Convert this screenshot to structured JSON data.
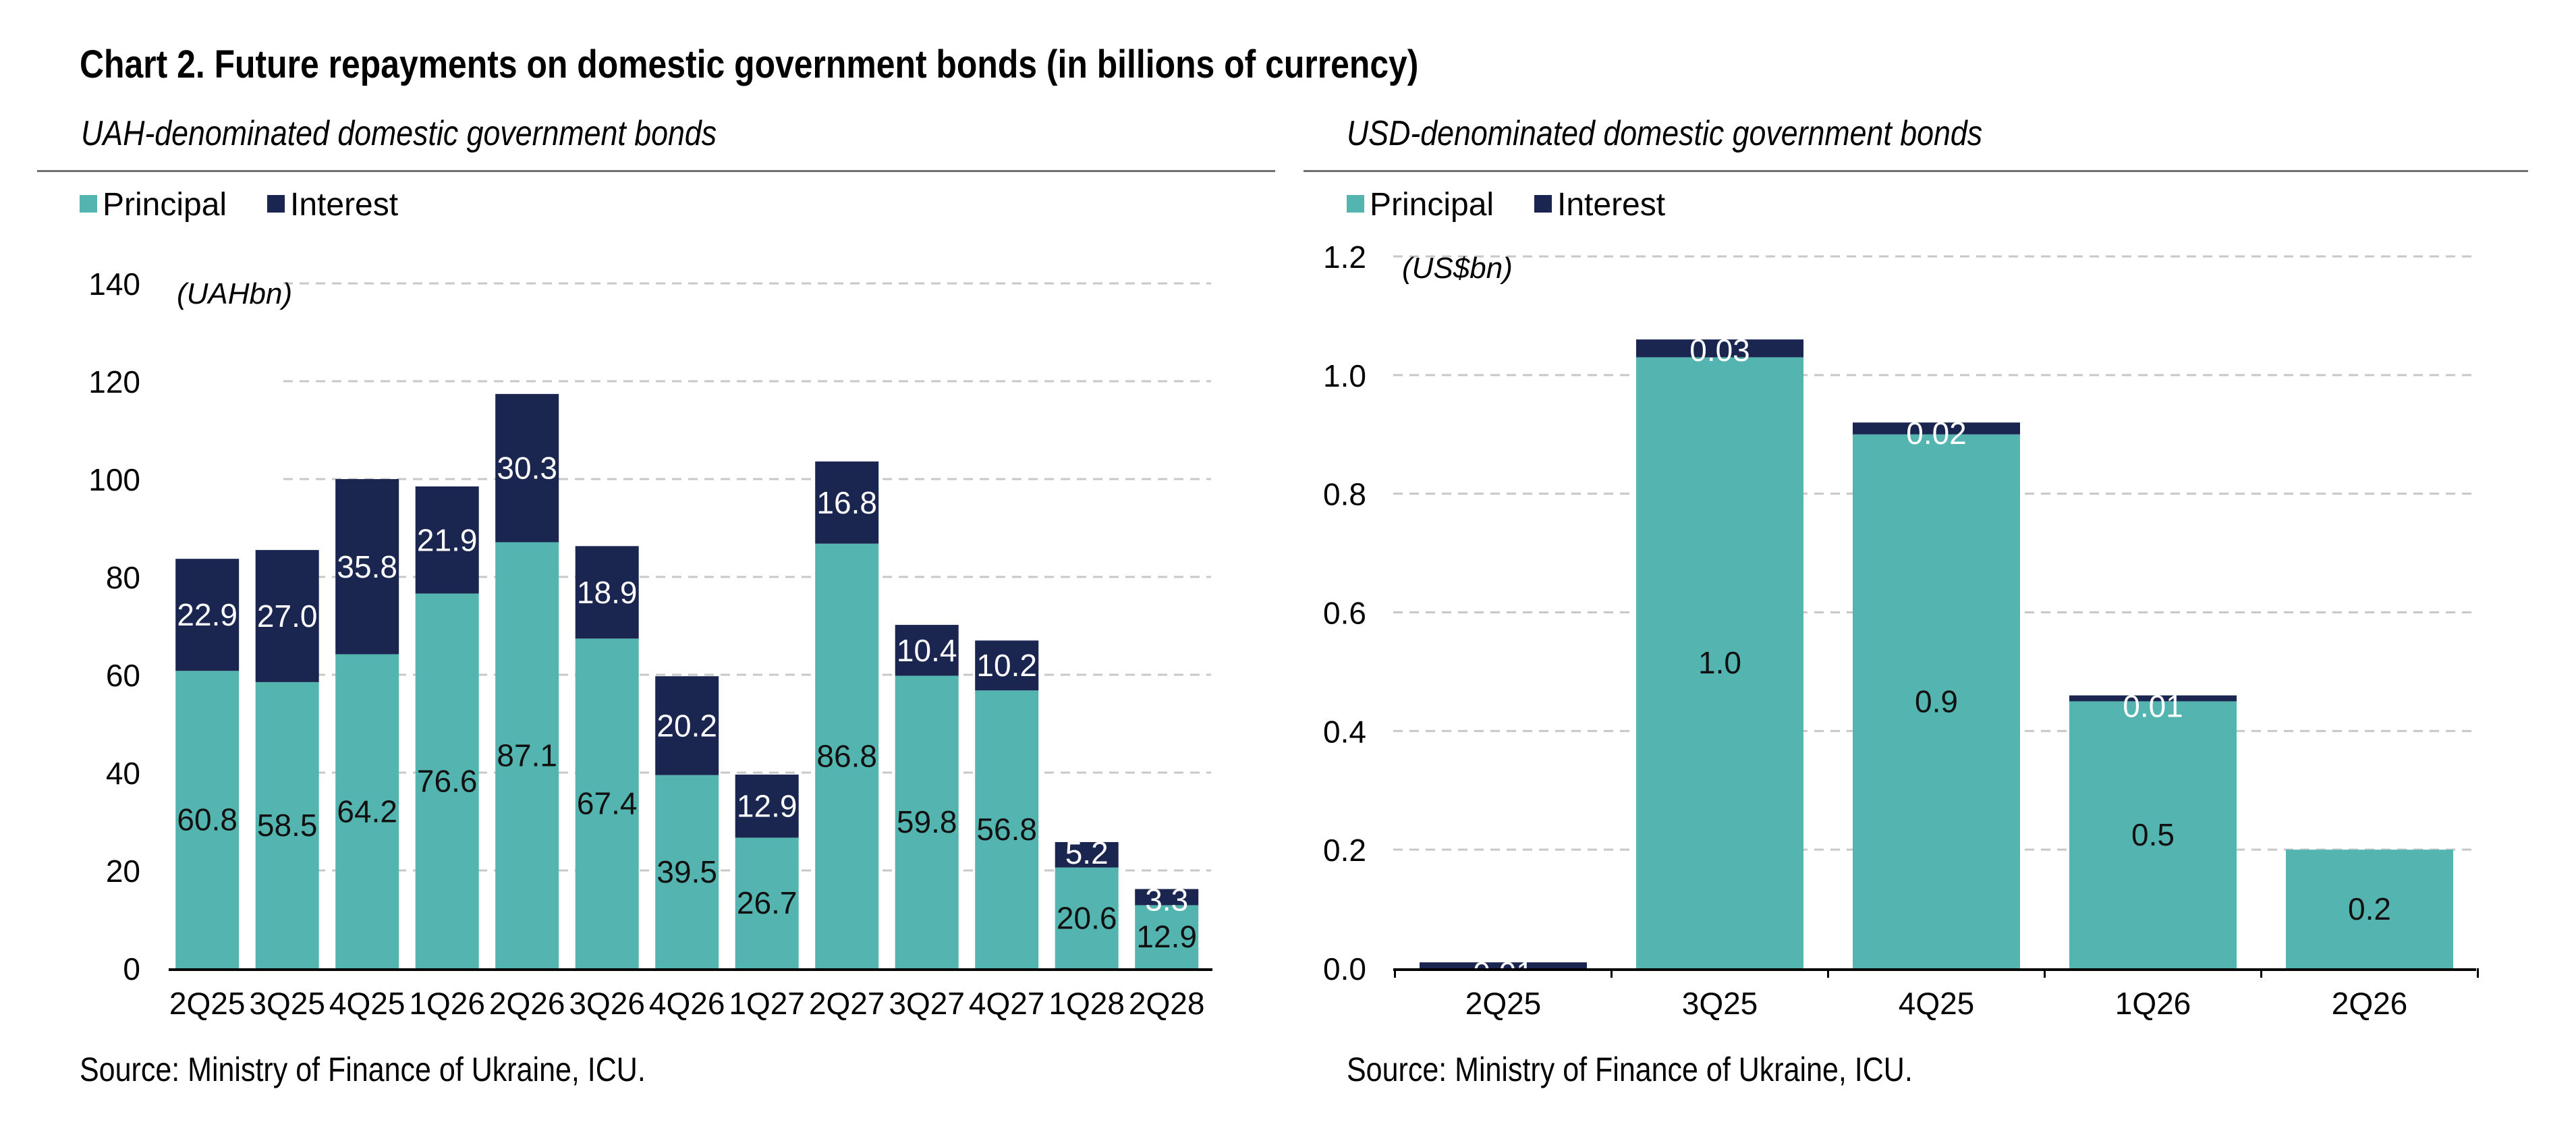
{
  "title": "Chart 2. Future repayments on domestic government bonds (in billions of currency)",
  "colors": {
    "principal": "#54b5b0",
    "interest": "#1a2550",
    "grid": "#c8c8c8",
    "axis": "#000000"
  },
  "chart_data": [
    {
      "type": "bar",
      "stacked": true,
      "subtitle": "UAH-denominated domestic government bonds",
      "unit_note": "(UAHbn)",
      "legend_position": "top-left",
      "grid": true,
      "ylim": [
        0,
        140
      ],
      "yticks": [
        "0",
        "20",
        "40",
        "60",
        "80",
        "100",
        "120",
        "140"
      ],
      "categories": [
        "2Q25",
        "3Q25",
        "4Q25",
        "1Q26",
        "2Q26",
        "3Q26",
        "4Q26",
        "1Q27",
        "2Q27",
        "3Q27",
        "4Q27",
        "1Q28",
        "2Q28"
      ],
      "series": [
        {
          "name": "Principal",
          "color": "#54b5b0",
          "values": [
            60.8,
            58.5,
            64.2,
            76.6,
            87.1,
            67.4,
            39.5,
            26.7,
            86.8,
            59.8,
            56.8,
            20.6,
            12.9
          ],
          "labels": [
            "60.8",
            "58.5",
            "64.2",
            "76.6",
            "87.1",
            "67.4",
            "39.5",
            "26.7",
            "86.8",
            "59.8",
            "56.8",
            "20.6",
            "12.9"
          ]
        },
        {
          "name": "Interest",
          "color": "#1a2550",
          "values": [
            22.9,
            27.0,
            35.8,
            21.9,
            30.3,
            18.9,
            20.2,
            12.9,
            16.8,
            10.4,
            10.2,
            5.2,
            3.3
          ],
          "labels": [
            "22.9",
            "27.0",
            "35.8",
            "21.9",
            "30.3",
            "18.9",
            "20.2",
            "12.9",
            "16.8",
            "10.4",
            "10.2",
            "5.2",
            "3.3"
          ]
        }
      ],
      "source": "Source: Ministry of Finance of Ukraine, ICU."
    },
    {
      "type": "bar",
      "stacked": true,
      "subtitle": "USD-denominated domestic government bonds",
      "unit_note": "(US$bn)",
      "legend_position": "top-left",
      "grid": true,
      "ylim": [
        0,
        1.2
      ],
      "yticks": [
        "0.0",
        "0.2",
        "0.4",
        "0.6",
        "0.8",
        "1.0",
        "1.2"
      ],
      "categories": [
        "2Q25",
        "3Q25",
        "4Q25",
        "1Q26",
        "2Q26"
      ],
      "series": [
        {
          "name": "Principal",
          "color": "#54b5b0",
          "values": [
            0.0,
            1.03,
            0.9,
            0.45,
            0.2
          ],
          "labels": [
            "",
            "1.0",
            "0.9",
            "0.5",
            "0.2"
          ]
        },
        {
          "name": "Interest",
          "color": "#1a2550",
          "values": [
            0.01,
            0.03,
            0.02,
            0.01,
            0.0
          ],
          "labels": [
            "0.01",
            "0.03",
            "0.02",
            "0.01",
            ""
          ]
        }
      ],
      "source": "Source: Ministry of Finance of Ukraine, ICU."
    }
  ]
}
